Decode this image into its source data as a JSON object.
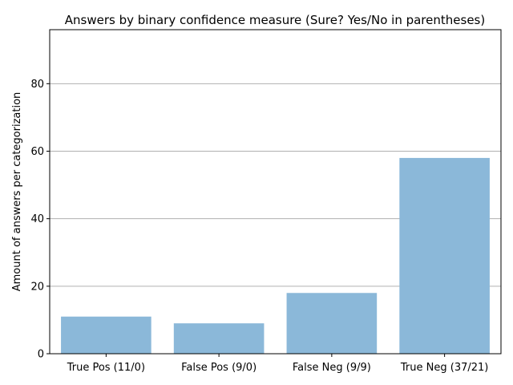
{
  "chart_data": {
    "type": "bar",
    "title": "Answers by binary confidence measure (Sure? Yes/No in parentheses)",
    "xlabel": "",
    "ylabel": "Amount of answers per categorization",
    "categories": [
      "True Pos (11/0)",
      "False Pos (9/0)",
      "False Neg (9/9)",
      "True Neg (37/21)"
    ],
    "values": [
      11,
      9,
      18,
      58
    ],
    "ylim": [
      0,
      96
    ],
    "yticks": [
      0,
      20,
      40,
      60,
      80
    ],
    "grid": "y",
    "bar_color": "#8bb8d9",
    "grid_color": "#b0b0b0"
  }
}
